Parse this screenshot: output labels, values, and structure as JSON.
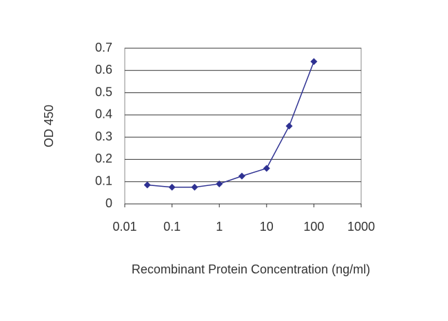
{
  "chart_data": {
    "type": "line",
    "xlabel": "Recombinant Protein Concentration (ng/ml)",
    "ylabel": "OD 450",
    "x": [
      0.03,
      0.1,
      0.3,
      1,
      3,
      10,
      30,
      100
    ],
    "values": [
      0.085,
      0.075,
      0.075,
      0.09,
      0.125,
      0.16,
      0.35,
      0.64
    ],
    "color": "#2e3192",
    "xscale": "log",
    "xlim": [
      0.01,
      1000
    ],
    "xticks": [
      0.01,
      0.1,
      1,
      10,
      100,
      1000
    ],
    "ylim": [
      0,
      0.7
    ],
    "yticks": [
      0,
      0.1,
      0.2,
      0.3,
      0.4,
      0.5,
      0.6,
      0.7
    ],
    "grid": true
  }
}
